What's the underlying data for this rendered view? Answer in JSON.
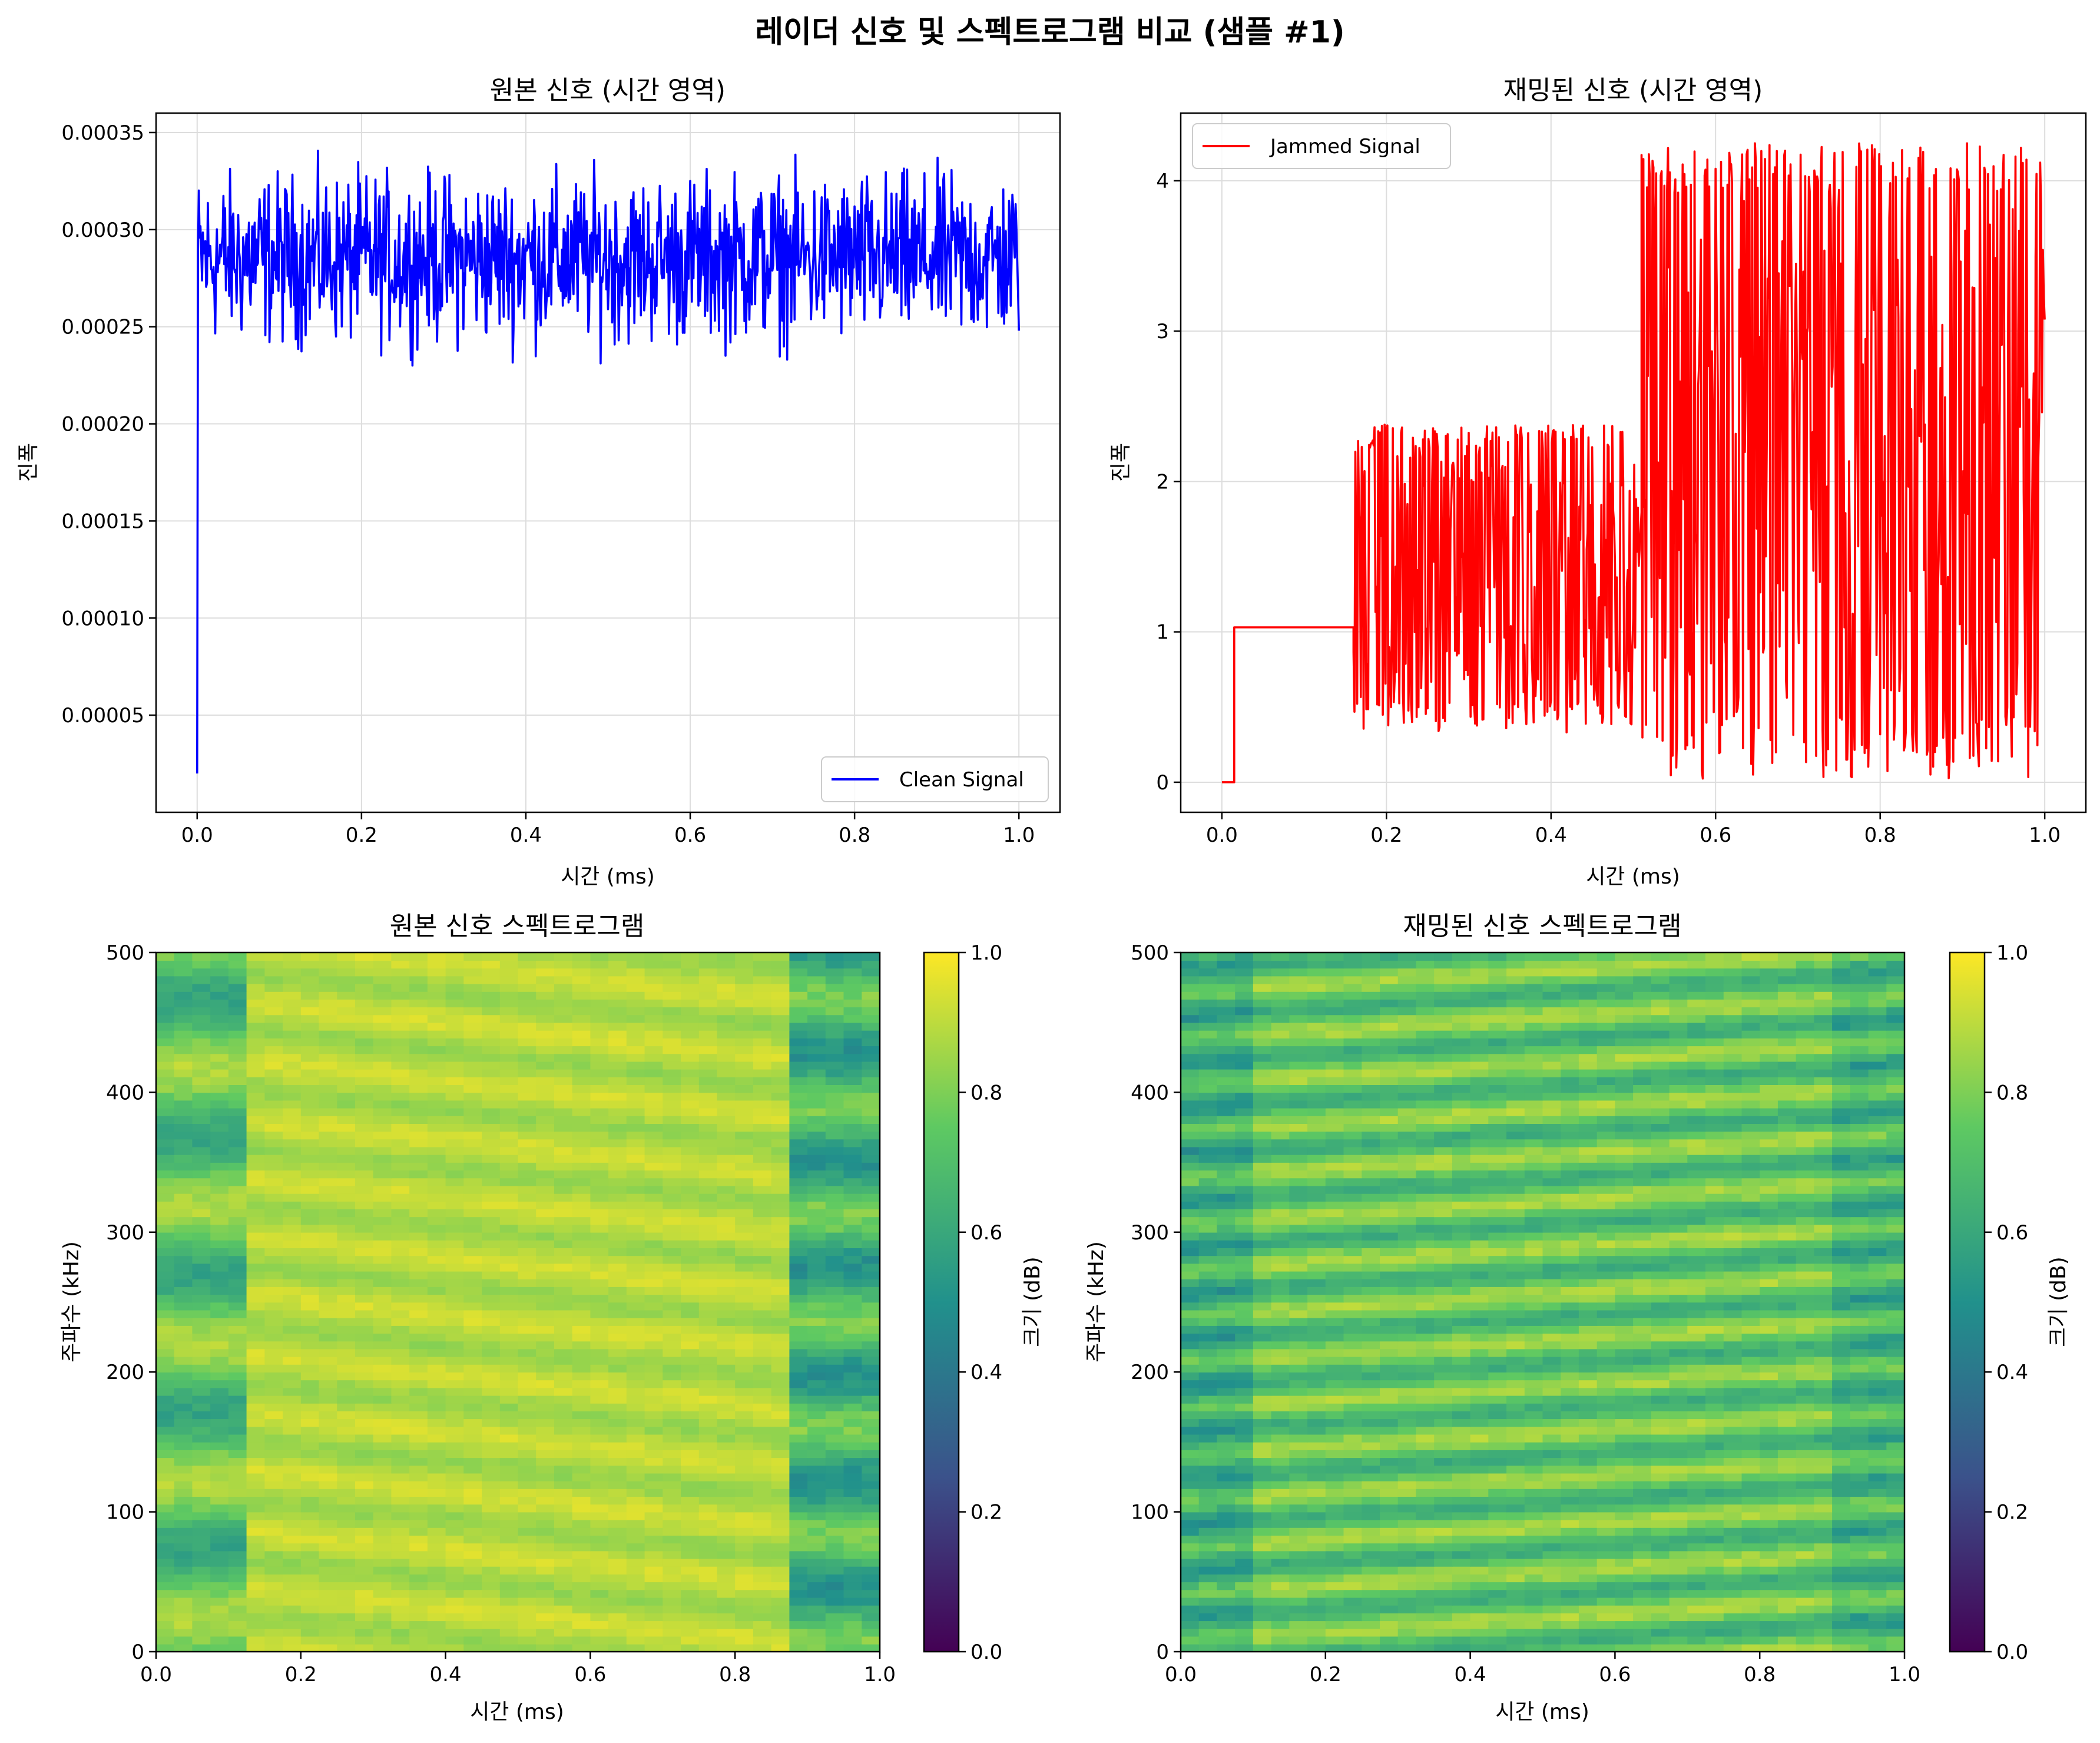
{
  "suptitle": "레이더 신호 및 스펙트로그램 비교 (샘플 #1)",
  "colors": {
    "clean": "#0000ff",
    "jammed": "#ff0000",
    "grid": "#dddddd"
  },
  "chart_data": [
    {
      "type": "line",
      "title": "원본 신호 (시간 영역)",
      "xlabel": "시간 (ms)",
      "ylabel": "진폭",
      "xlim": [
        -0.05,
        1.05
      ],
      "ylim": [
        0.0,
        0.00036
      ],
      "xticks": [
        0.0,
        0.2,
        0.4,
        0.6,
        0.8,
        1.0
      ],
      "xtick_labels": [
        "0.0",
        "0.2",
        "0.4",
        "0.6",
        "0.8",
        "1.0"
      ],
      "yticks": [
        5e-05,
        0.0001,
        0.00015,
        0.0002,
        0.00025,
        0.0003,
        0.00035
      ],
      "ytick_labels": [
        "0.00005",
        "0.00010",
        "0.00015",
        "0.00020",
        "0.00025",
        "0.00030",
        "0.00035"
      ],
      "grid": true,
      "legend_position": "lower right",
      "series": [
        {
          "name": "Clean Signal",
          "color": "#0000ff",
          "x_range": [
            0.0,
            1.0
          ],
          "y_start": 2e-05,
          "y_mean": 0.000285,
          "y_band": [
            0.00023,
            0.000343
          ]
        }
      ]
    },
    {
      "type": "line",
      "title": "재밍된 신호 (시간 영역)",
      "xlabel": "시간 (ms)",
      "ylabel": "진폭",
      "xlim": [
        -0.05,
        1.05
      ],
      "ylim": [
        -0.2,
        4.45
      ],
      "xticks": [
        0.0,
        0.2,
        0.4,
        0.6,
        0.8,
        1.0
      ],
      "xtick_labels": [
        "0.0",
        "0.2",
        "0.4",
        "0.6",
        "0.8",
        "1.0"
      ],
      "yticks": [
        0,
        1,
        2,
        3,
        4
      ],
      "ytick_labels": [
        "0",
        "1",
        "2",
        "3",
        "4"
      ],
      "grid": true,
      "legend_position": "upper left",
      "series": [
        {
          "name": "Jammed Signal",
          "color": "#ff0000",
          "segments": [
            {
              "x": [
                0.0,
                0.015
              ],
              "level": 0.0
            },
            {
              "x": [
                0.015,
                0.16
              ],
              "level": 1.03
            },
            {
              "x": [
                0.16,
                0.51
              ],
              "band": [
                0.33,
                2.38
              ]
            },
            {
              "x": [
                0.51,
                1.0
              ],
              "band": [
                0.02,
                4.25
              ]
            }
          ]
        }
      ]
    },
    {
      "type": "heatmap",
      "title": "원본 신호 스펙트로그램",
      "xlabel": "시간 (ms)",
      "ylabel": "주파수 (kHz)",
      "xlim": [
        0.0,
        1.0
      ],
      "ylim": [
        0,
        500
      ],
      "xticks": [
        0.0,
        0.2,
        0.4,
        0.6,
        0.8,
        1.0
      ],
      "xtick_labels": [
        "0.0",
        "0.2",
        "0.4",
        "0.6",
        "0.8",
        "1.0"
      ],
      "yticks": [
        0,
        100,
        200,
        300,
        400,
        500
      ],
      "ytick_labels": [
        "0",
        "100",
        "200",
        "300",
        "400",
        "500"
      ],
      "colormap": "viridis",
      "colorbar": {
        "label": "크기 (dB)",
        "range": [
          0.0,
          1.0
        ],
        "ticks": [
          0.0,
          0.2,
          0.4,
          0.6,
          0.8,
          1.0
        ],
        "tick_labels": [
          "0.0",
          "0.2",
          "0.4",
          "0.6",
          "0.8",
          "1.0"
        ]
      },
      "value_range": [
        0.3,
        1.0
      ],
      "typical_value": 0.9
    },
    {
      "type": "heatmap",
      "title": "재밍된 신호 스펙트로그램",
      "xlabel": "시간 (ms)",
      "ylabel": "주파수 (kHz)",
      "xlim": [
        0.0,
        1.0
      ],
      "ylim": [
        0,
        500
      ],
      "xticks": [
        0.0,
        0.2,
        0.4,
        0.6,
        0.8,
        1.0
      ],
      "xtick_labels": [
        "0.0",
        "0.2",
        "0.4",
        "0.6",
        "0.8",
        "1.0"
      ],
      "yticks": [
        0,
        100,
        200,
        300,
        400,
        500
      ],
      "ytick_labels": [
        "0",
        "100",
        "200",
        "300",
        "400",
        "500"
      ],
      "colormap": "viridis",
      "colorbar": {
        "label": "크기 (dB)",
        "range": [
          0.0,
          1.0
        ],
        "ticks": [
          0.0,
          0.2,
          0.4,
          0.6,
          0.8,
          1.0
        ],
        "tick_labels": [
          "0.0",
          "0.2",
          "0.4",
          "0.6",
          "0.8",
          "1.0"
        ]
      },
      "value_range": [
        0.35,
        1.0
      ],
      "typical_value": 0.7
    }
  ]
}
